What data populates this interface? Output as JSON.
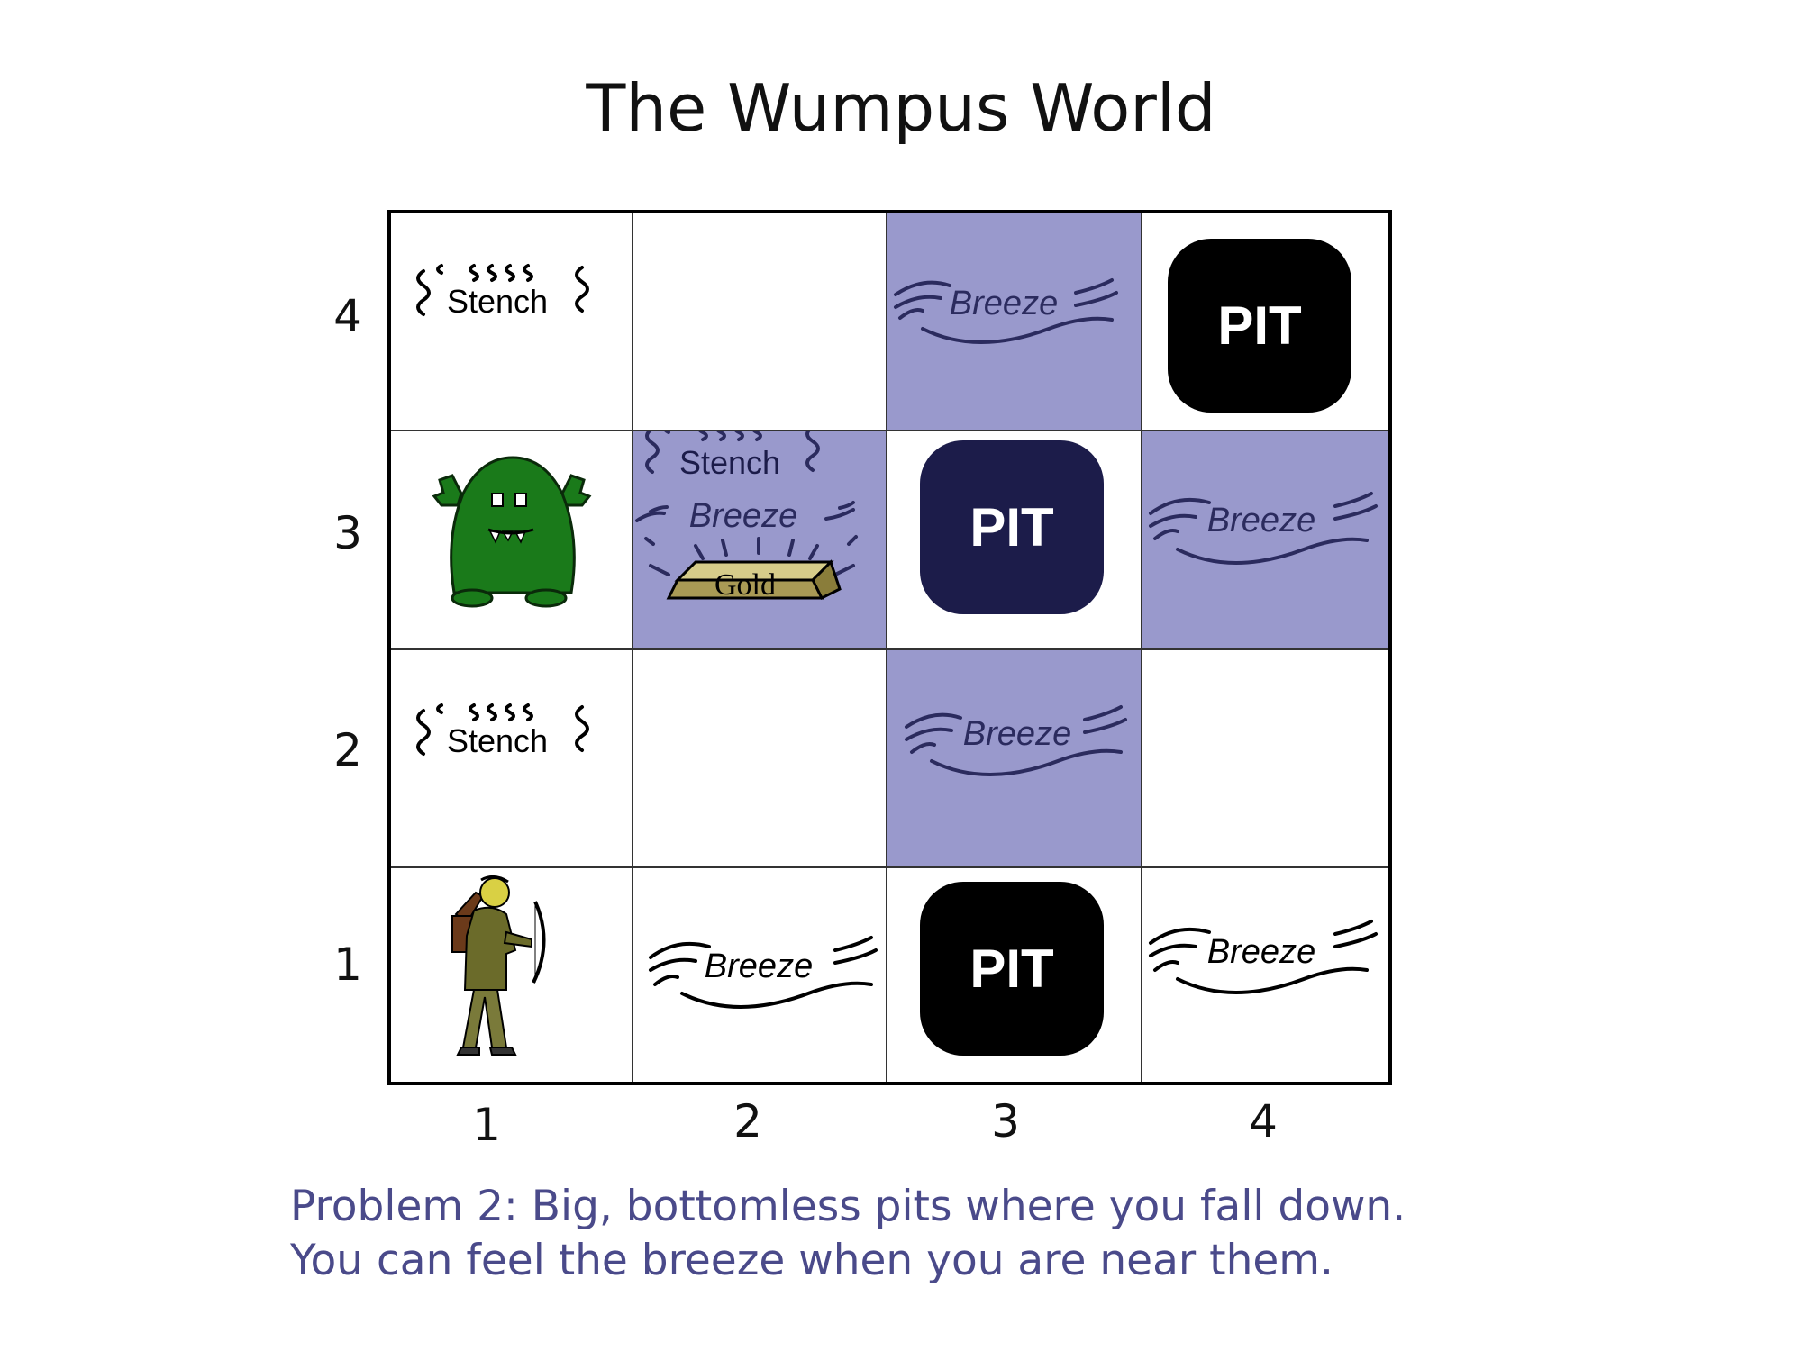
{
  "title": "The Wumpus World",
  "row_labels": [
    "4",
    "3",
    "2",
    "1"
  ],
  "col_labels": [
    "1",
    "2",
    "3",
    "4"
  ],
  "cells": {
    "r4c1": {
      "stench": "Stench"
    },
    "r4c3": {
      "breeze": "Breeze"
    },
    "r4c4": {
      "pit": "PIT"
    },
    "r3c1": {
      "wumpus": "wumpus"
    },
    "r3c2": {
      "stench": "Stench",
      "breeze": "Breeze",
      "gold": "Gold"
    },
    "r3c3": {
      "pit": "PIT"
    },
    "r3c4": {
      "breeze": "Breeze"
    },
    "r2c1": {
      "stench": "Stench"
    },
    "r2c3": {
      "breeze": "Breeze"
    },
    "r1c1": {
      "agent": "agent"
    },
    "r1c2": {
      "breeze": "Breeze"
    },
    "r1c3": {
      "pit": "PIT"
    },
    "r1c4": {
      "breeze": "Breeze"
    }
  },
  "colors": {
    "shaded_cell": "#9999cc",
    "pit_black": "#000000",
    "pit_dark_navy": "#1c1c4a",
    "caption": "#4a4a8a",
    "wumpus_green": "#1a7a1a",
    "gold": "#a99a55"
  },
  "caption": {
    "line1": "Problem 2: Big, bottomless pits where you fall down.",
    "line2": "You can feel the breeze when you are near them."
  }
}
